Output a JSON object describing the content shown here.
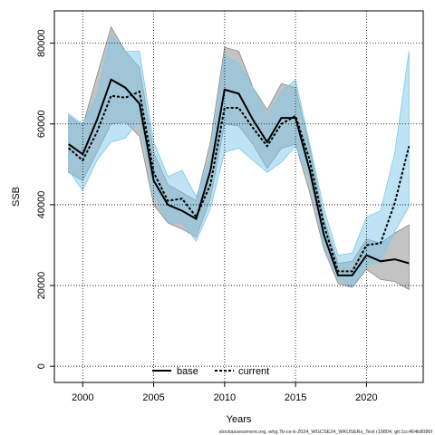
{
  "chart_data": {
    "type": "line",
    "title": "",
    "xlabel": "Years",
    "ylabel": "SSB",
    "xlim": [
      1998,
      2024
    ],
    "ylim": [
      -4000,
      88000
    ],
    "xticks": [
      2000,
      2005,
      2010,
      2015,
      2020
    ],
    "yticks": [
      0,
      20000,
      40000,
      60000,
      80000
    ],
    "grid": true,
    "legend_position": "bottom-center",
    "footnote": "stockassessment.org, whg.7b-ce-k-2024_WGCSE24_WKUSERs_Test r19804, git:1cc464b8086f",
    "x": [
      1999,
      2000,
      2001,
      2002,
      2003,
      2004,
      2005,
      2006,
      2007,
      2008,
      2009,
      2010,
      2011,
      2012,
      2013,
      2014,
      2015,
      2016,
      2017,
      2018,
      2019,
      2020,
      2021,
      2022,
      2023
    ],
    "series": [
      {
        "name": "base",
        "color": "#000000",
        "band_color": "#888888",
        "values": [
          55000,
          52500,
          61000,
          71000,
          69000,
          65000,
          46000,
          40000,
          38500,
          36500,
          48500,
          68500,
          67500,
          61000,
          55500,
          61500,
          61500,
          48500,
          32500,
          22500,
          22500,
          27500,
          26000,
          26500,
          25500
        ],
        "lower": [
          48000,
          46000,
          53000,
          60000,
          60500,
          57000,
          40000,
          35500,
          34000,
          32000,
          41500,
          60000,
          59500,
          55000,
          49000,
          54000,
          55000,
          43000,
          29000,
          20500,
          19500,
          24000,
          21500,
          21000,
          19000
        ],
        "upper": [
          62000,
          59500,
          72000,
          84000,
          78000,
          74000,
          53000,
          45000,
          43000,
          41000,
          55500,
          79000,
          78000,
          69000,
          63500,
          70000,
          69000,
          54000,
          36500,
          25500,
          26000,
          31500,
          30500,
          33000,
          35000
        ]
      },
      {
        "name": "current",
        "color": "#000000",
        "band_color": "#7ec8e9",
        "values": [
          54000,
          51000,
          58000,
          67000,
          66500,
          68000,
          48000,
          41000,
          41500,
          37000,
          45000,
          64000,
          64000,
          59000,
          54500,
          60000,
          62000,
          51000,
          35000,
          23500,
          23500,
          30000,
          30500,
          40500,
          54500
        ],
        "lower": [
          48500,
          43500,
          51000,
          55500,
          56500,
          61000,
          43000,
          35500,
          35500,
          31000,
          39000,
          53000,
          54000,
          51000,
          48000,
          50500,
          54500,
          46500,
          30000,
          21500,
          19500,
          25000,
          26000,
          33500,
          39500
        ],
        "upper": [
          62500,
          60000,
          67000,
          82000,
          78000,
          78000,
          55500,
          47000,
          48500,
          42000,
          51500,
          77000,
          75000,
          69000,
          62000,
          68000,
          71000,
          55000,
          39000,
          27500,
          28000,
          37000,
          38500,
          53000,
          78000
        ]
      }
    ]
  }
}
